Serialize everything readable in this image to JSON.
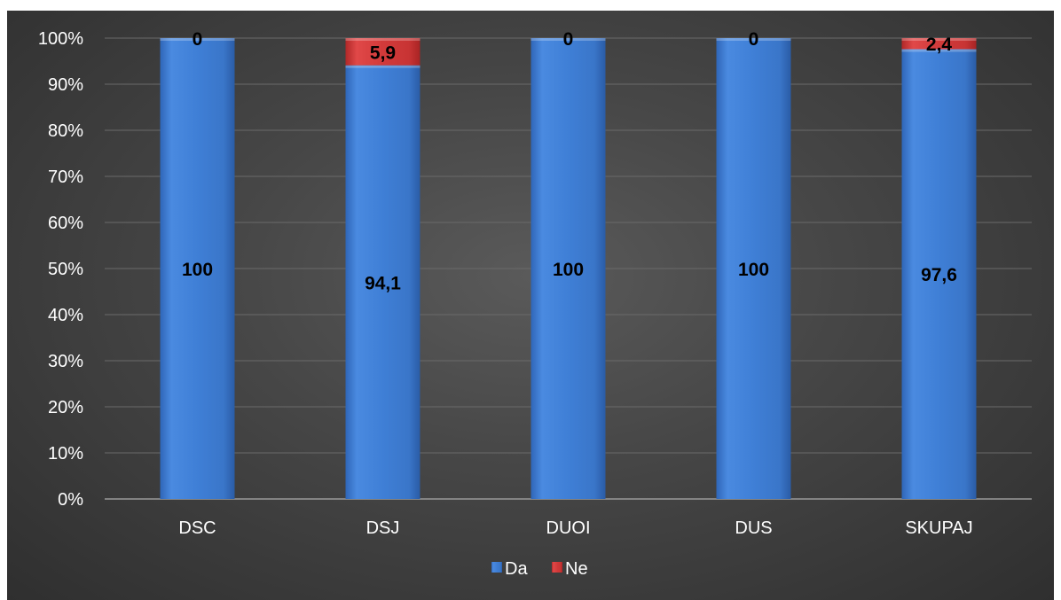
{
  "chart_data": {
    "type": "bar",
    "stacked": true,
    "percent_stacked": true,
    "categories": [
      "DSC",
      "DSJ",
      "DUOI",
      "DUS",
      "SKUPAJ"
    ],
    "series": [
      {
        "name": "Da",
        "values": [
          100,
          94.1,
          100,
          100,
          97.6
        ],
        "labels": [
          "100",
          "94,1",
          "100",
          "100",
          "97,6"
        ],
        "color": "#3f7fd6"
      },
      {
        "name": "Ne",
        "values": [
          0,
          5.9,
          0,
          0,
          2.4
        ],
        "labels": [
          "0",
          "5,9",
          "0",
          "0",
          "2,4"
        ],
        "color": "#d23a3a"
      }
    ],
    "y_ticks": [
      "0%",
      "10%",
      "20%",
      "30%",
      "40%",
      "50%",
      "60%",
      "70%",
      "80%",
      "90%",
      "100%"
    ],
    "ylim": [
      0,
      100
    ],
    "grid": true,
    "legend_position": "bottom",
    "background_color": "#474747"
  }
}
